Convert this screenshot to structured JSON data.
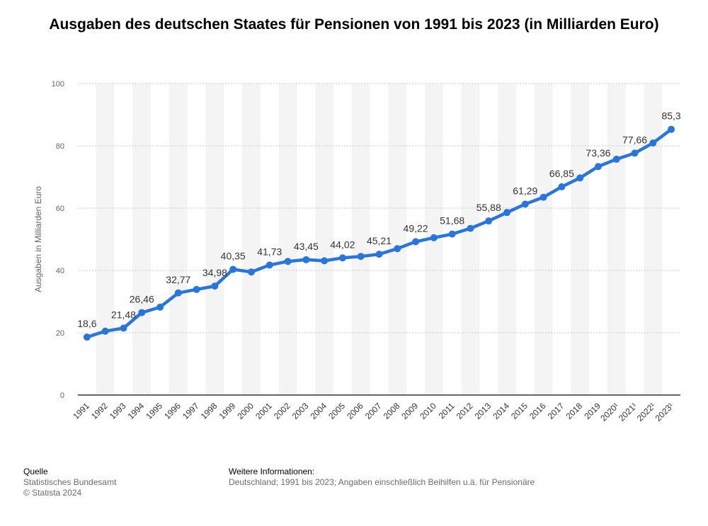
{
  "chart_data": {
    "type": "line",
    "title": "Ausgaben des deutschen Staates für Pensionen von 1991 bis 2023 (in Milliarden Euro)",
    "ylabel": "Ausgaben in Milliarden Euro",
    "xlabel": "",
    "ylim": [
      0,
      100
    ],
    "yticks": [
      0,
      20,
      40,
      60,
      80,
      100
    ],
    "grid": true,
    "categories": [
      "1991",
      "1992",
      "1993",
      "1994",
      "1995",
      "1996",
      "1997",
      "1998",
      "1999",
      "2000",
      "2001",
      "2002",
      "2003",
      "2004",
      "2005",
      "2006",
      "2007",
      "2008",
      "2009",
      "2010",
      "2011",
      "2012",
      "2013",
      "2014",
      "2015",
      "2016",
      "2017",
      "2018",
      "2019",
      "2020¹",
      "2021¹",
      "2022¹",
      "2023¹"
    ],
    "values": [
      18.6,
      20.5,
      21.48,
      26.46,
      28.2,
      32.77,
      33.9,
      34.98,
      40.35,
      39.5,
      41.73,
      42.9,
      43.45,
      43.1,
      44.02,
      44.5,
      45.21,
      47.0,
      49.22,
      50.5,
      51.68,
      53.5,
      55.88,
      58.6,
      61.29,
      63.5,
      66.85,
      69.7,
      73.36,
      75.7,
      77.66,
      80.9,
      85.3
    ],
    "data_labels": [
      {
        "category": "1991",
        "text": "18,6"
      },
      {
        "category": "1993",
        "text": "21,48"
      },
      {
        "category": "1994",
        "text": "26,46"
      },
      {
        "category": "1996",
        "text": "32,77"
      },
      {
        "category": "1998",
        "text": "34,98"
      },
      {
        "category": "1999",
        "text": "40,35"
      },
      {
        "category": "2001",
        "text": "41,73"
      },
      {
        "category": "2003",
        "text": "43,45"
      },
      {
        "category": "2005",
        "text": "44,02"
      },
      {
        "category": "2007",
        "text": "45,21"
      },
      {
        "category": "2009",
        "text": "49,22"
      },
      {
        "category": "2011",
        "text": "51,68"
      },
      {
        "category": "2013",
        "text": "55,88"
      },
      {
        "category": "2015",
        "text": "61,29"
      },
      {
        "category": "2017",
        "text": "66,85"
      },
      {
        "category": "2019",
        "text": "73,36"
      },
      {
        "category": "2021¹",
        "text": "77,66"
      },
      {
        "category": "2023¹",
        "text": "85,3"
      }
    ],
    "line_color": "#2876dd",
    "band_color": "#f4f4f4",
    "grid_color": "#c8c8c8"
  },
  "footer": {
    "source_heading": "Quelle",
    "source_line1": "Statistisches Bundesamt",
    "source_line2": "© Statista 2024",
    "info_heading": "Weitere Informationen:",
    "info_text": "Deutschland; 1991 bis 2023; Angaben einschließlich Beihilfen u.ä. für Pensionäre"
  }
}
